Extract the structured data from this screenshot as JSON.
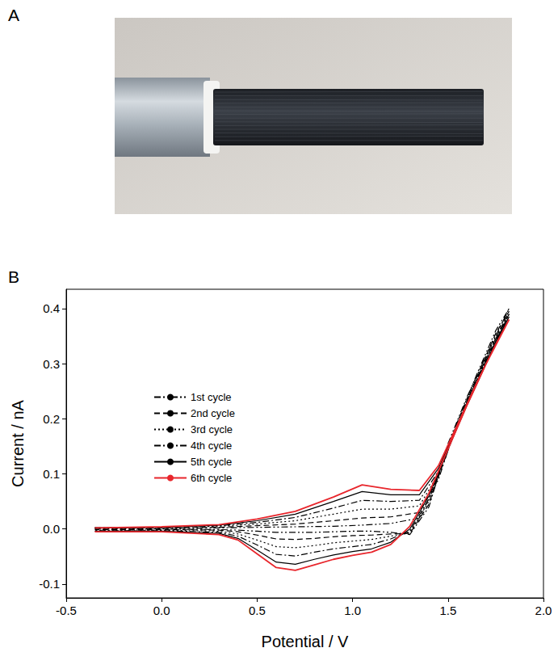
{
  "panels": [
    "A",
    "B"
  ],
  "chart_data": {
    "type": "line",
    "x_label": "Potential / V",
    "y_label": "Current / nA",
    "xlim": [
      -0.5,
      2.0
    ],
    "xticks": [
      -0.5,
      {
        "value": 0,
        "label": "0.0"
      },
      0.5,
      {
        "value": 1,
        "label": "1.0"
      },
      1.5,
      {
        "value": 2,
        "label": "2.0"
      }
    ],
    "ylim": [
      -0.125,
      0.435
    ],
    "yticks": [
      -0.1,
      {
        "value": 0,
        "label": "0.0"
      },
      0.1,
      0.2,
      0.3,
      0.4
    ],
    "grid": false,
    "legend": "upper left",
    "x": [
      -0.35,
      0,
      0.3,
      0.5,
      0.7,
      0.9,
      1.05,
      1.2,
      1.35,
      1.45,
      1.55,
      1.65,
      1.75,
      1.82,
      1.7,
      1.6,
      1.5,
      1.4,
      1.3,
      1.2,
      1.1,
      1.0,
      0.9,
      0.8,
      0.7,
      0.6,
      0.5,
      0.4,
      0.3,
      0,
      -0.35
    ],
    "series": [
      {
        "name": "1st cycle",
        "color": "#000000",
        "line_style": "dashdotdot",
        "values": [
          0.001,
          0.001,
          0.002,
          0.003,
          0.004,
          0.005,
          0.007,
          0.01,
          0.02,
          0.09,
          0.195,
          0.28,
          0.36,
          0.4,
          0.315,
          0.24,
          0.155,
          0.04,
          -0.01,
          -0.006,
          -0.004,
          -0.004,
          -0.005,
          -0.006,
          -0.006,
          -0.006,
          -0.004,
          -0.002,
          -0.001,
          0,
          0
        ]
      },
      {
        "name": "2nd cycle",
        "color": "#000000",
        "line_style": "dashed",
        "values": [
          0.002,
          0.002,
          0.003,
          0.006,
          0.009,
          0.015,
          0.02,
          0.022,
          0.03,
          0.095,
          0.19,
          0.275,
          0.355,
          0.395,
          0.31,
          0.235,
          0.15,
          0.045,
          -0.008,
          -0.009,
          -0.011,
          -0.012,
          -0.014,
          -0.017,
          -0.019,
          -0.018,
          -0.011,
          -0.005,
          -0.002,
          -0.001,
          -0.001
        ]
      },
      {
        "name": "3rd cycle",
        "color": "#000000",
        "line_style": "dotted",
        "values": [
          0.002,
          0.003,
          0.005,
          0.009,
          0.015,
          0.027,
          0.036,
          0.036,
          0.042,
          0.1,
          0.19,
          0.27,
          0.35,
          0.39,
          0.305,
          0.23,
          0.145,
          0.05,
          -0.006,
          -0.013,
          -0.019,
          -0.022,
          -0.025,
          -0.03,
          -0.034,
          -0.032,
          -0.02,
          -0.009,
          -0.004,
          -0.002,
          -0.002
        ]
      },
      {
        "name": "4th cycle",
        "color": "#000000",
        "line_style": "dashdot",
        "values": [
          0.002,
          0.003,
          0.006,
          0.012,
          0.021,
          0.038,
          0.052,
          0.05,
          0.052,
          0.105,
          0.19,
          0.27,
          0.345,
          0.39,
          0.305,
          0.23,
          0.145,
          0.055,
          -0.004,
          -0.018,
          -0.028,
          -0.032,
          -0.036,
          -0.042,
          -0.049,
          -0.046,
          -0.029,
          -0.013,
          -0.006,
          -0.003,
          -0.003
        ]
      },
      {
        "name": "5th cycle",
        "color": "#000000",
        "line_style": "solid",
        "values": [
          0.002,
          0.003,
          0.007,
          0.015,
          0.027,
          0.05,
          0.068,
          0.062,
          0.062,
          0.11,
          0.19,
          0.265,
          0.34,
          0.385,
          0.3,
          0.225,
          0.145,
          0.06,
          0.0,
          -0.024,
          -0.036,
          -0.041,
          -0.047,
          -0.055,
          -0.064,
          -0.06,
          -0.038,
          -0.017,
          -0.008,
          -0.004,
          -0.004
        ]
      },
      {
        "name": "6th cycle",
        "color": "#e8262c",
        "line_style": "solid",
        "values": [
          0.002,
          0.004,
          0.008,
          0.018,
          0.032,
          0.058,
          0.08,
          0.072,
          0.07,
          0.115,
          0.19,
          0.265,
          0.335,
          0.38,
          0.3,
          0.225,
          0.145,
          0.065,
          0.005,
          -0.028,
          -0.042,
          -0.048,
          -0.055,
          -0.065,
          -0.075,
          -0.07,
          -0.045,
          -0.02,
          -0.01,
          -0.005,
          -0.005
        ]
      }
    ]
  }
}
